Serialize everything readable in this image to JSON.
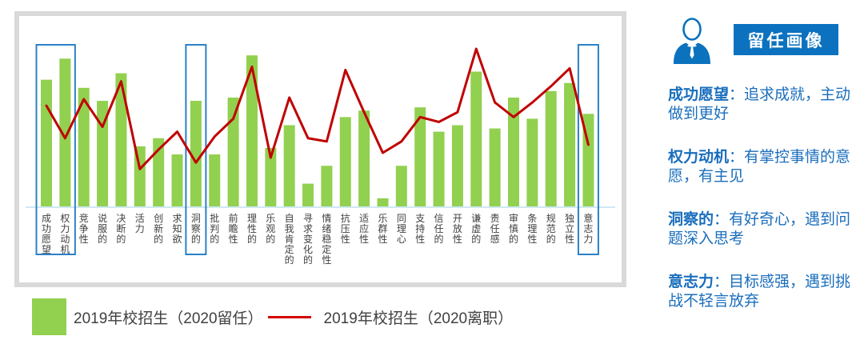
{
  "chart_data": {
    "type": "bar",
    "title": "",
    "xlabel": "",
    "ylabel": "",
    "ylim": [
      0,
      100
    ],
    "grid": false,
    "legend_position": "bottom-left",
    "categories": [
      "成功愿望",
      "权力动机",
      "竞争性",
      "说服的",
      "决断的",
      "活力",
      "创新的",
      "求知欲",
      "洞察的",
      "批判的",
      "前瞻性",
      "理性的",
      "乐观的",
      "自我肯定的",
      "寻求变化的",
      "情绪稳定性",
      "抗压性",
      "适应性",
      "乐群性",
      "同理心",
      "支持性",
      "信任的",
      "开放性",
      "谦虚的",
      "责任感",
      "审慎的",
      "条理性",
      "规范的",
      "独立性",
      "意志力"
    ],
    "series": [
      {
        "name": "2019年校招生（2020留任）",
        "type": "bar",
        "color": "#92D050",
        "values": [
          78,
          91,
          73,
          65,
          82,
          37,
          42,
          32,
          65,
          32,
          67,
          93,
          36,
          50,
          14,
          25,
          55,
          59,
          5,
          25,
          61,
          46,
          50,
          83,
          48,
          67,
          54,
          71,
          76,
          57
        ]
      },
      {
        "name": "2019年校招生（2020离职）",
        "type": "line",
        "color": "#C00000",
        "values": [
          62,
          42,
          66,
          49,
          77,
          23,
          35,
          46,
          27,
          43,
          54,
          86,
          30,
          67,
          42,
          40,
          84,
          58,
          33,
          40,
          55,
          52,
          58,
          97,
          64,
          55,
          64,
          74,
          85,
          38
        ]
      }
    ],
    "highlighted_categories": [
      "成功愿望",
      "权力动机",
      "洞察的",
      "意志力"
    ],
    "highlight_groups": [
      [
        0,
        1
      ],
      [
        8
      ],
      [
        29
      ]
    ],
    "highlight_box_color": "#2B80C9",
    "axis_color": "#cfe8f2",
    "label_color": "#404040"
  },
  "legend": {
    "bar_label": "2019年校招生（2020留任）",
    "line_label": "2019年校招生（2020离职）",
    "bar_color": "#92D050",
    "line_color": "#D40000",
    "text_color": "#404040"
  },
  "profile": {
    "icon": "businessman-icon",
    "icon_color": "#0B72BE",
    "badge": "留任画像",
    "badge_color": "#0C72BF",
    "text_color": "#1A6EBD",
    "traits": [
      {
        "label": "成功愿望",
        "colon": "：",
        "text": "追求成就，主动做到更好"
      },
      {
        "label": "权力动机",
        "colon": "：",
        "text": "有掌控事情的意愿，有主见"
      },
      {
        "label": "洞察的",
        "colon": "：",
        "text": "有好奇心，遇到问题深入思考"
      },
      {
        "label": "意志力",
        "colon": "：",
        "text": "目标感强，遇到挑战不轻言放弃"
      }
    ]
  }
}
